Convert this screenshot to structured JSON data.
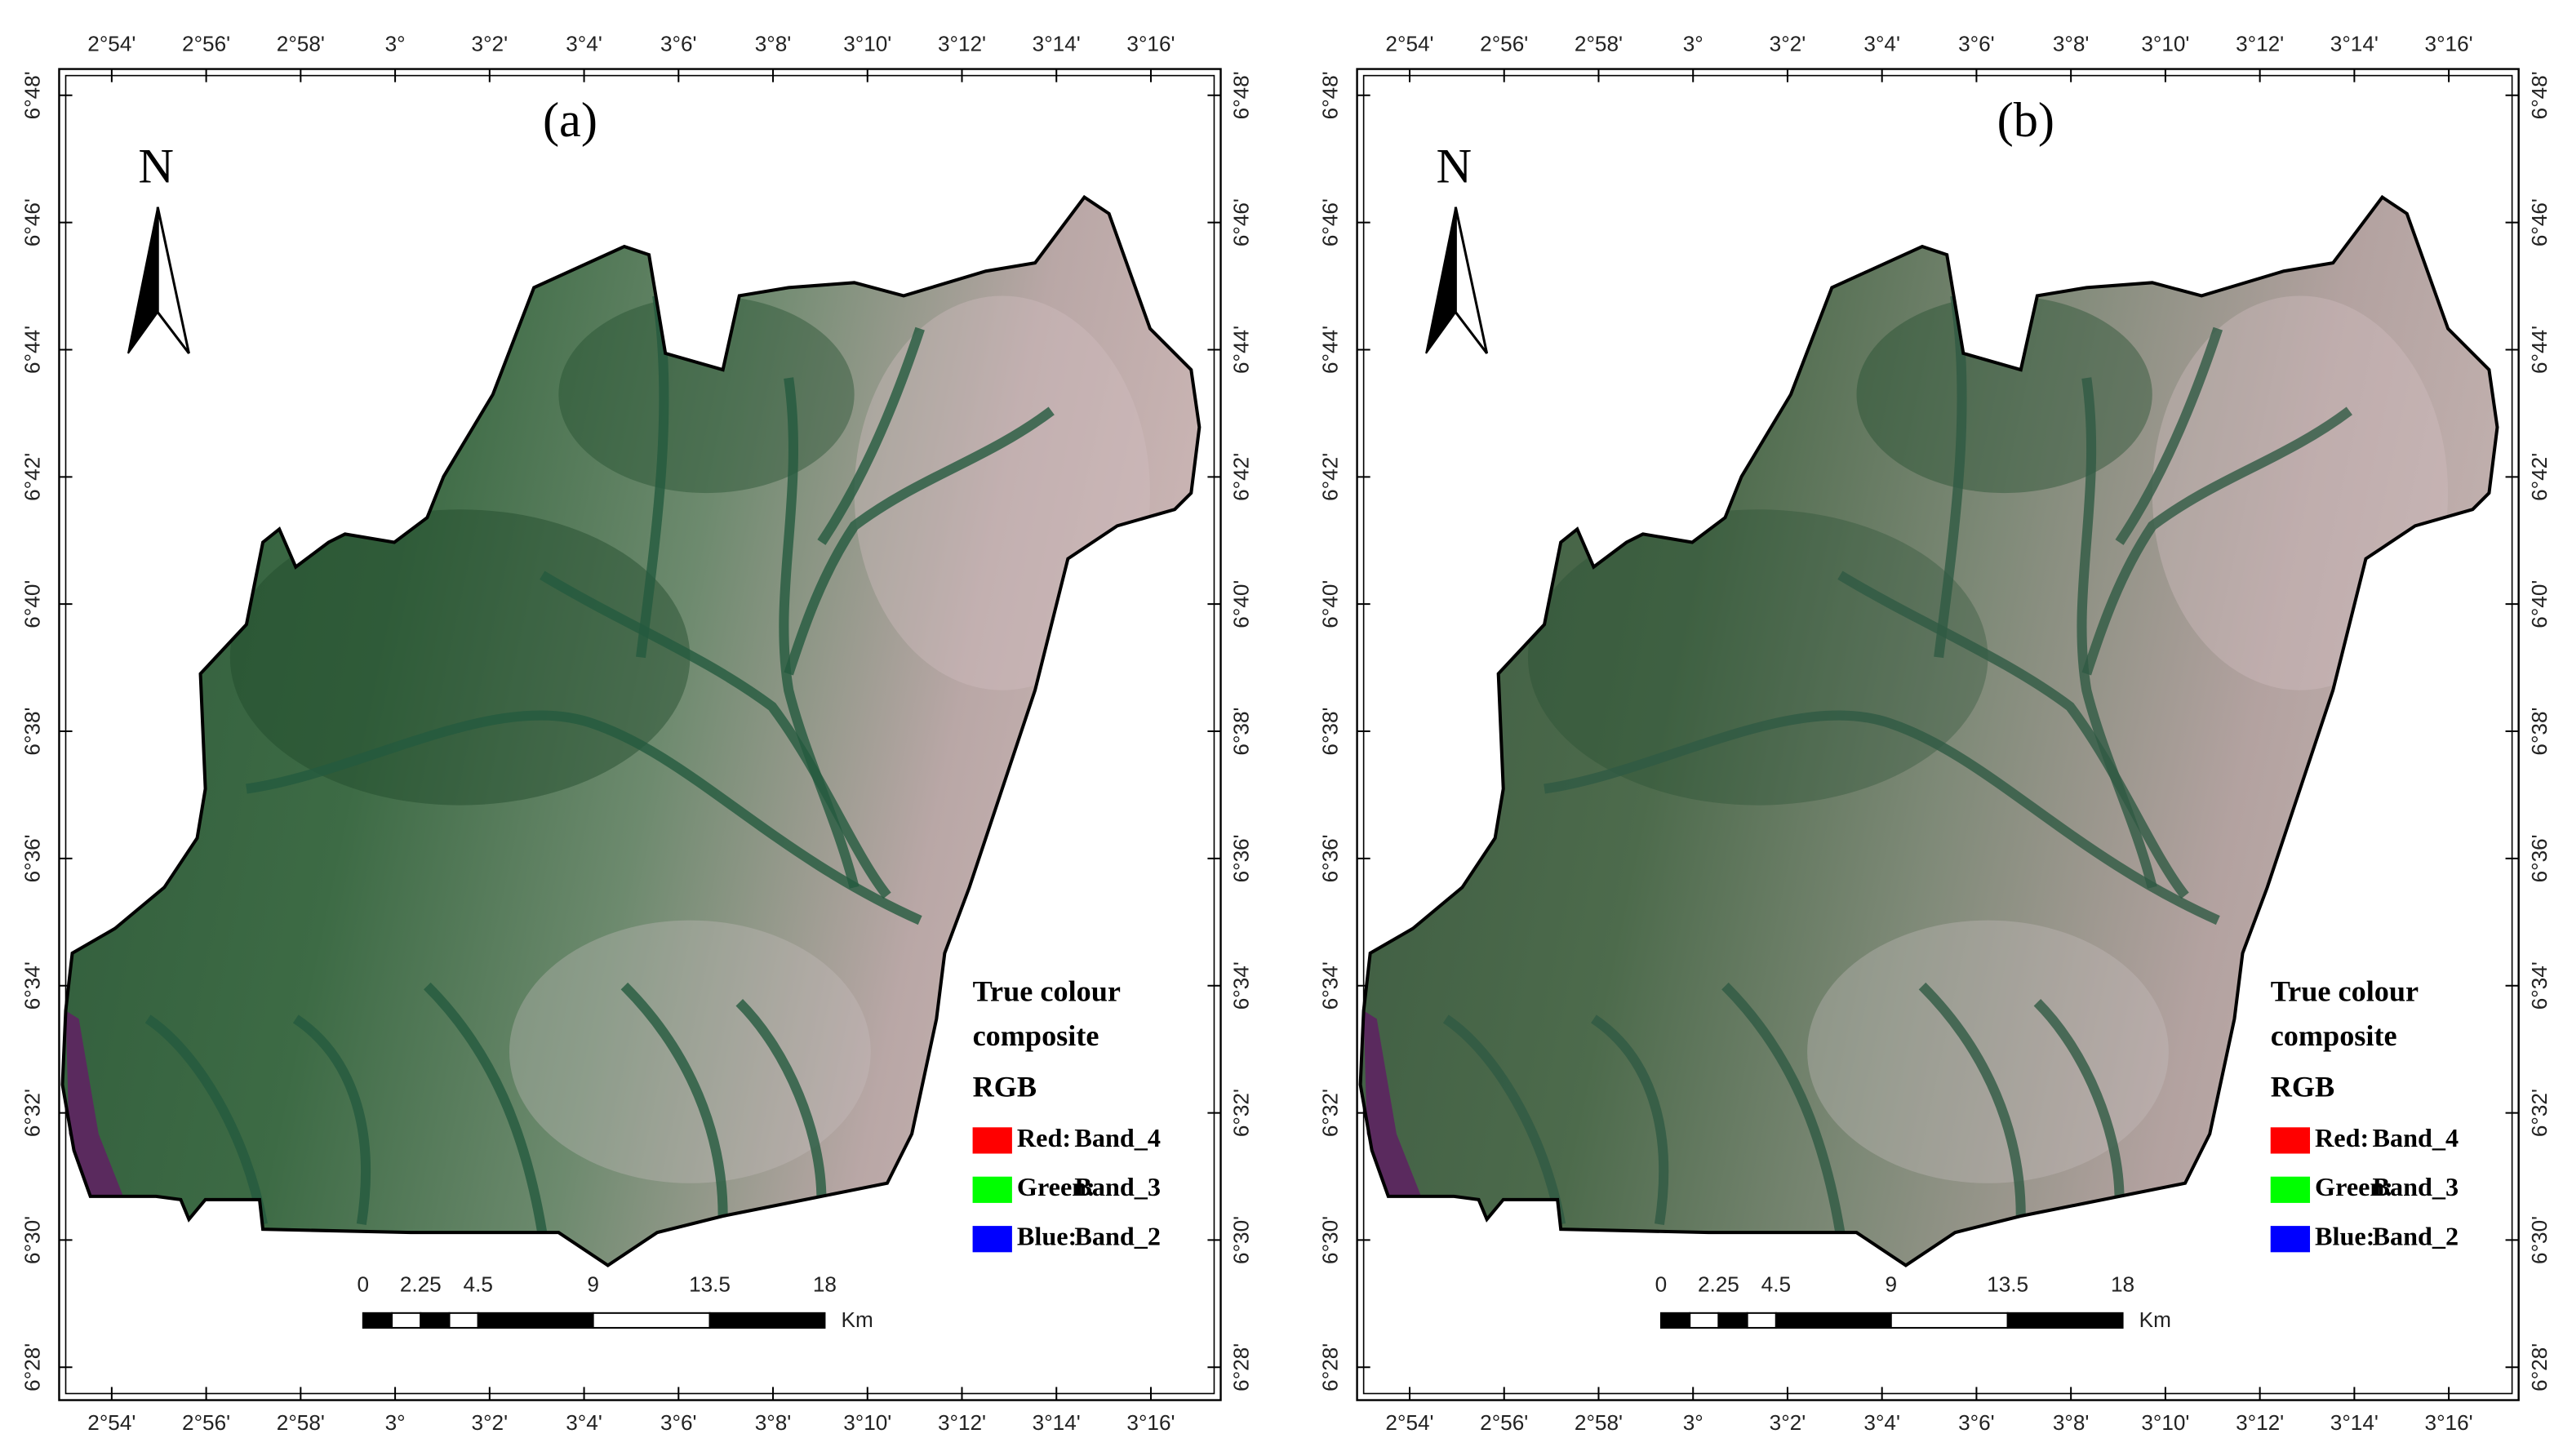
{
  "panels": [
    {
      "label": "(a)"
    },
    {
      "label": "(b)"
    }
  ],
  "longitude_ticks": [
    "2°54'",
    "2°56'",
    "2°58'",
    "3°",
    "3°2'",
    "3°4'",
    "3°6'",
    "3°8'",
    "3°10'",
    "3°12'",
    "3°14'",
    "3°16'"
  ],
  "latitude_ticks": [
    "6°48'",
    "6°46'",
    "6°44'",
    "6°42'",
    "6°40'",
    "6°38'",
    "6°36'",
    "6°34'",
    "6°32'",
    "6°30'",
    "6°28'"
  ],
  "north_label": "N",
  "legend": {
    "title": [
      "True colour",
      "composite"
    ],
    "subtitle": "RGB",
    "items": [
      {
        "label": "Red:",
        "band": "Band_4",
        "color": "#ff0000"
      },
      {
        "label": "Green:",
        "band": "Band_3",
        "color": "#00ff00"
      },
      {
        "label": "Blue:",
        "band": "Band_2",
        "color": "#0000ff"
      }
    ]
  },
  "scale_bar": {
    "ticks": [
      "0",
      "2.25",
      "4.5",
      "9",
      "13.5",
      "18"
    ],
    "unit": "Km"
  }
}
